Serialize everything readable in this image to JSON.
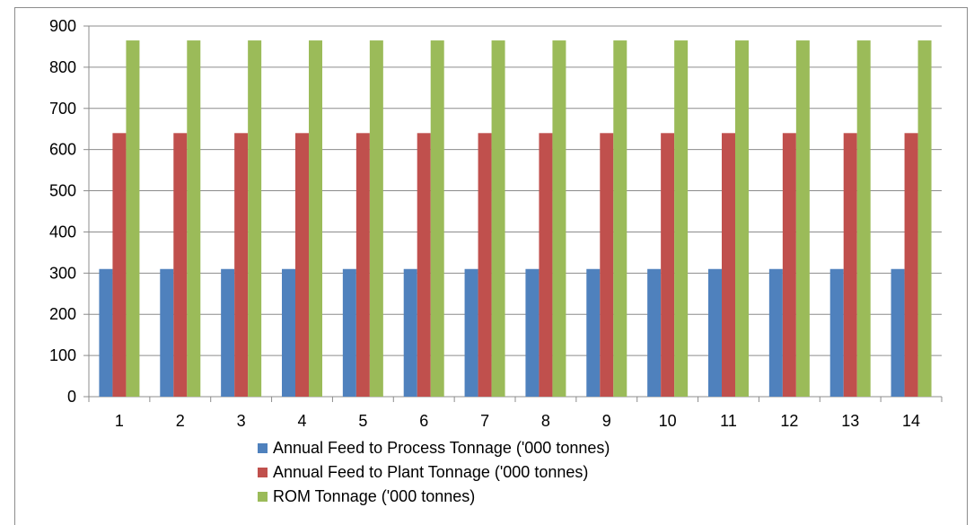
{
  "chart_data": {
    "type": "bar",
    "categories": [
      "1",
      "2",
      "3",
      "4",
      "5",
      "6",
      "7",
      "8",
      "9",
      "10",
      "11",
      "12",
      "13",
      "14"
    ],
    "series": [
      {
        "name": "Annual Feed to Process Tonnage ('000 tonnes)",
        "color": "#4f81bd",
        "values": [
          310,
          310,
          310,
          310,
          310,
          310,
          310,
          310,
          310,
          310,
          310,
          310,
          310,
          310
        ]
      },
      {
        "name": "Annual Feed to Plant Tonnage ('000 tonnes)",
        "color": "#c0504d",
        "values": [
          640,
          640,
          640,
          640,
          640,
          640,
          640,
          640,
          640,
          640,
          640,
          640,
          640,
          640
        ]
      },
      {
        "name": "ROM Tonnage ('000 tonnes)",
        "color": "#9bbb59",
        "values": [
          865,
          865,
          865,
          865,
          865,
          865,
          865,
          865,
          865,
          865,
          865,
          865,
          865,
          865
        ]
      }
    ],
    "ylim": [
      0,
      900
    ],
    "yticks": [
      0,
      100,
      200,
      300,
      400,
      500,
      600,
      700,
      800,
      900
    ],
    "grid": true,
    "legend_position": "bottom",
    "title": "",
    "xlabel": "",
    "ylabel": ""
  }
}
